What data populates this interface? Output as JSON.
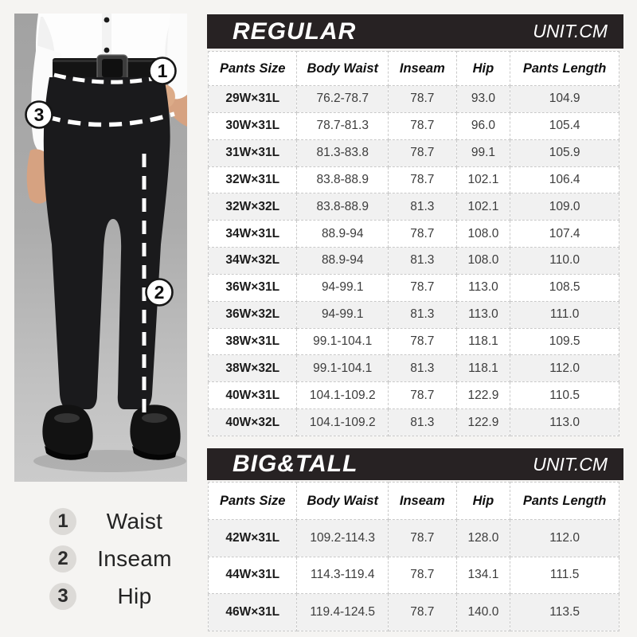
{
  "figure": {
    "markers": [
      {
        "num": "1",
        "label": "Waist"
      },
      {
        "num": "2",
        "label": "Inseam"
      },
      {
        "num": "3",
        "label": "Hip"
      }
    ]
  },
  "colors": {
    "bar_bg": "#272223",
    "row_alt": "#f1f1f1",
    "border": "#c9c9c9",
    "page_bg": "#f5f4f2",
    "legend_circle": "#dcdad7"
  },
  "chart_data": [
    {
      "type": "table",
      "title": "REGULAR",
      "unit_label": "UNIT.CM",
      "columns": [
        "Pants Size",
        "Body Waist",
        "Inseam",
        "Hip",
        "Pants Length"
      ],
      "rows": [
        [
          "29W×31L",
          "76.2-78.7",
          "78.7",
          "93.0",
          "104.9"
        ],
        [
          "30W×31L",
          "78.7-81.3",
          "78.7",
          "96.0",
          "105.4"
        ],
        [
          "31W×31L",
          "81.3-83.8",
          "78.7",
          "99.1",
          "105.9"
        ],
        [
          "32W×31L",
          "83.8-88.9",
          "78.7",
          "102.1",
          "106.4"
        ],
        [
          "32W×32L",
          "83.8-88.9",
          "81.3",
          "102.1",
          "109.0"
        ],
        [
          "34W×31L",
          "88.9-94",
          "78.7",
          "108.0",
          "107.4"
        ],
        [
          "34W×32L",
          "88.9-94",
          "81.3",
          "108.0",
          "110.0"
        ],
        [
          "36W×31L",
          "94-99.1",
          "78.7",
          "113.0",
          "108.5"
        ],
        [
          "36W×32L",
          "94-99.1",
          "81.3",
          "113.0",
          "111.0"
        ],
        [
          "38W×31L",
          "99.1-104.1",
          "78.7",
          "118.1",
          "109.5"
        ],
        [
          "38W×32L",
          "99.1-104.1",
          "81.3",
          "118.1",
          "112.0"
        ],
        [
          "40W×31L",
          "104.1-109.2",
          "78.7",
          "122.9",
          "110.5"
        ],
        [
          "40W×32L",
          "104.1-109.2",
          "81.3",
          "122.9",
          "113.0"
        ]
      ]
    },
    {
      "type": "table",
      "title": "BIG&TALL",
      "unit_label": "UNIT.CM",
      "columns": [
        "Pants Size",
        "Body Waist",
        "Inseam",
        "Hip",
        "Pants Length"
      ],
      "rows": [
        [
          "42W×31L",
          "109.2-114.3",
          "78.7",
          "128.0",
          "112.0"
        ],
        [
          "44W×31L",
          "114.3-119.4",
          "78.7",
          "134.1",
          "111.5"
        ],
        [
          "46W×31L",
          "119.4-124.5",
          "78.7",
          "140.0",
          "113.5"
        ]
      ]
    }
  ]
}
